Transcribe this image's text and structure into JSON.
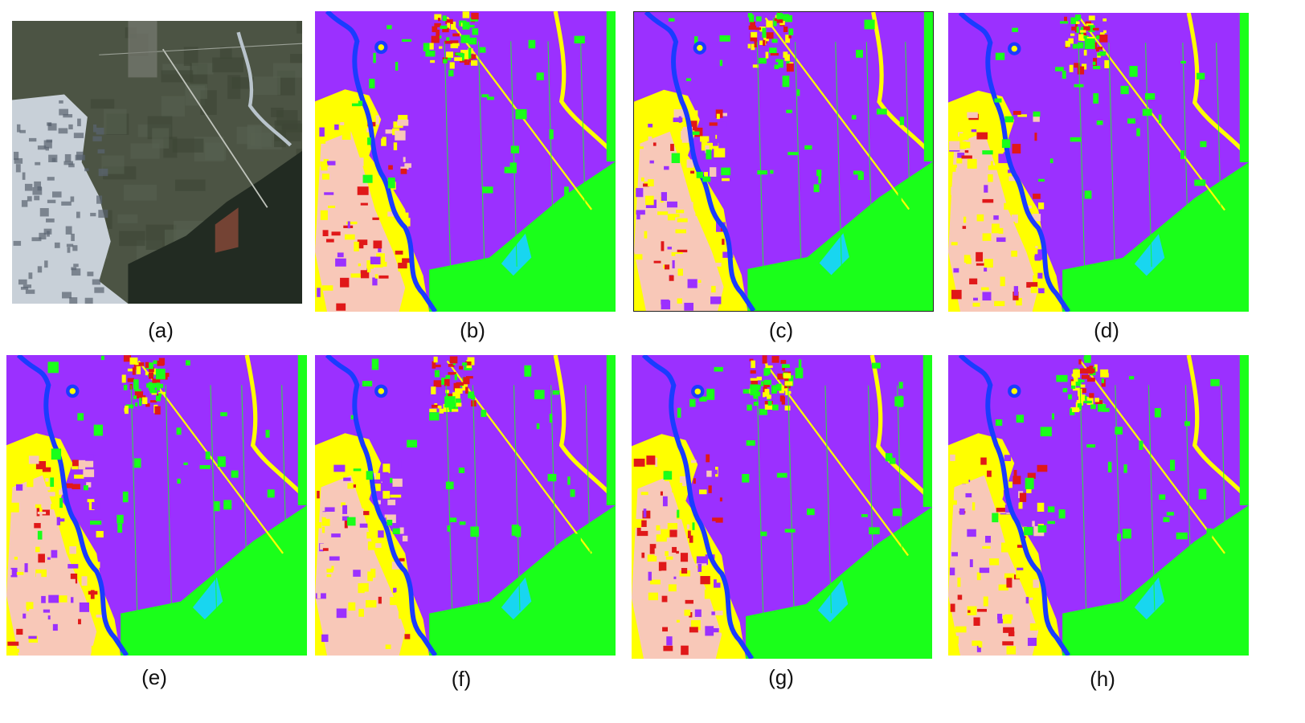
{
  "figure": {
    "panels": [
      {
        "id": "a",
        "caption": "(a)",
        "kind": "satellite"
      },
      {
        "id": "b",
        "caption": "(b)",
        "kind": "classmap",
        "variant": 0
      },
      {
        "id": "c",
        "caption": "(c)",
        "kind": "classmap",
        "variant": 1
      },
      {
        "id": "d",
        "caption": "(d)",
        "kind": "classmap",
        "variant": 2
      },
      {
        "id": "e",
        "caption": "(e)",
        "kind": "classmap",
        "variant": 3
      },
      {
        "id": "f",
        "caption": "(f)",
        "kind": "classmap",
        "variant": 4
      },
      {
        "id": "g",
        "caption": "(g)",
        "kind": "classmap",
        "variant": 5
      },
      {
        "id": "h",
        "caption": "(h)",
        "kind": "classmap",
        "variant": 6
      }
    ],
    "class_colors": {
      "crop_purple": "#9b30ff",
      "vegetation_green": "#1aff1a",
      "urban_yellow": "#ffff00",
      "bare_pink": "#f8c8b8",
      "water_blue": "#1a3cff",
      "pond_cyan": "#18d6f0",
      "building_red": "#e01818",
      "dark_green": "#0f8a2a"
    },
    "satellite_colors": {
      "field_dark": "#3e4636",
      "field_mid": "#4c5444",
      "greenhouse": "#c8d0d8",
      "forest": "#222b22",
      "river": "#b9c4cc"
    }
  }
}
